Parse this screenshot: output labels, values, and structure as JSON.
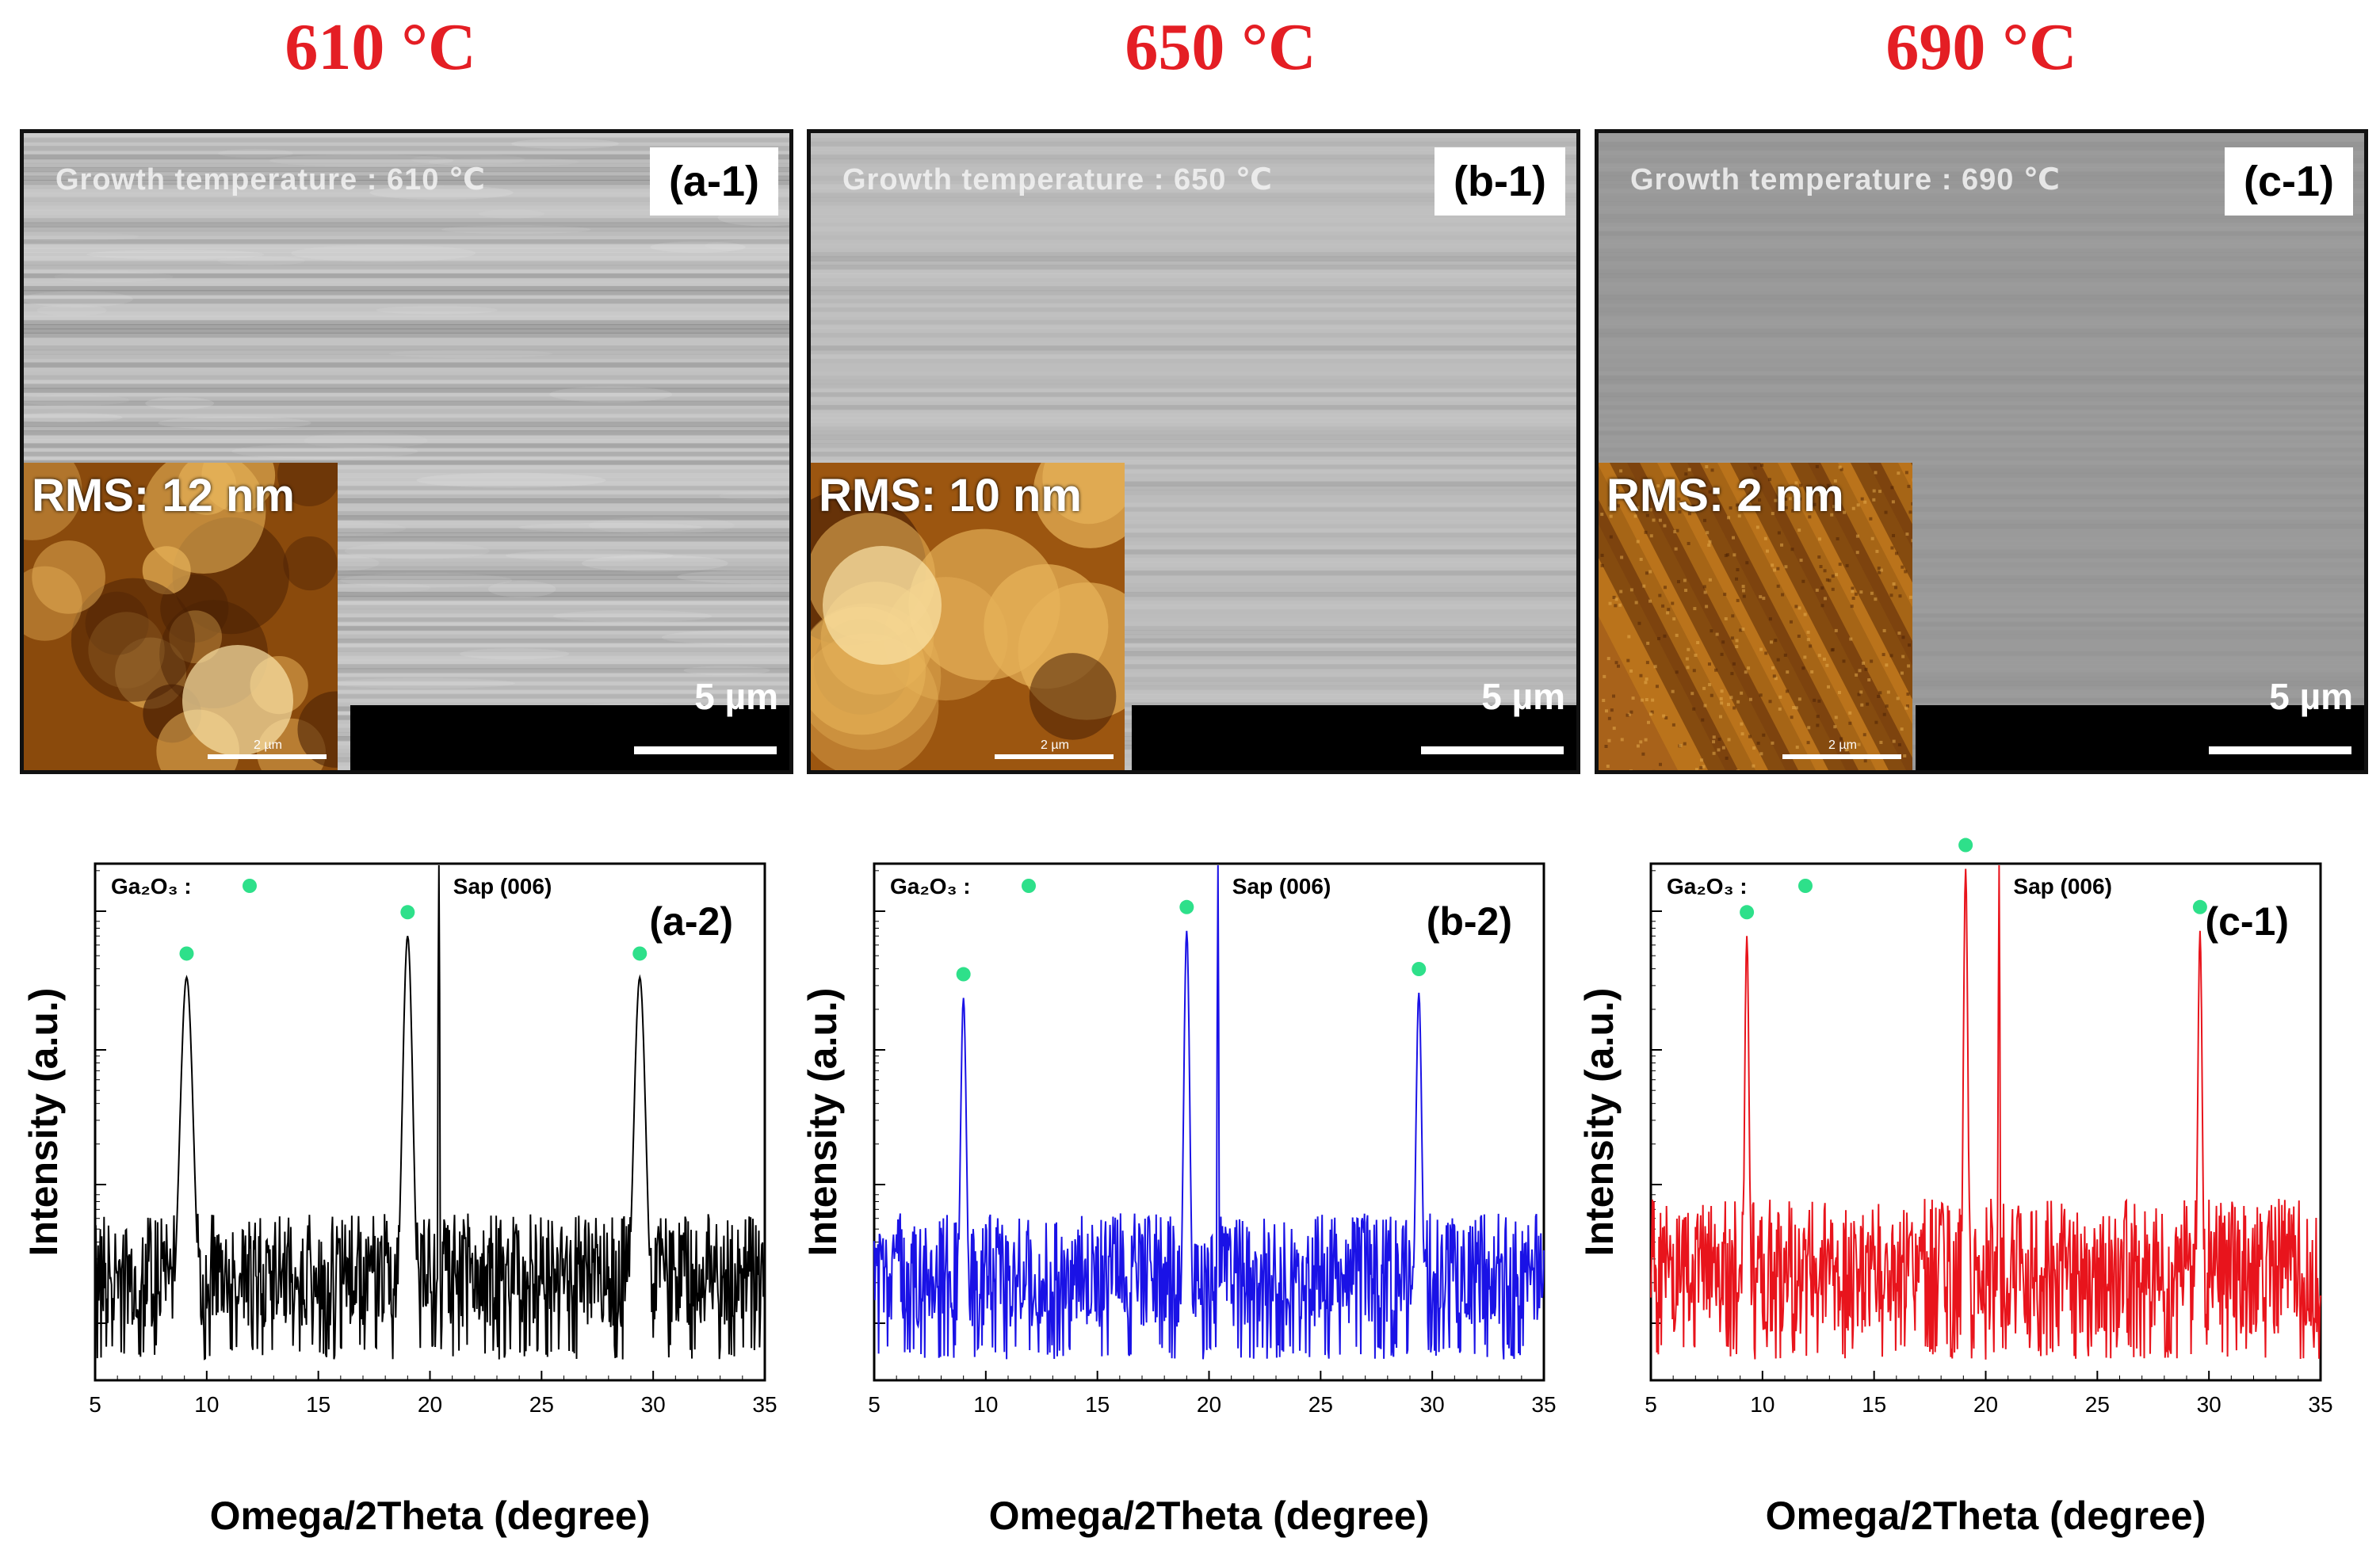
{
  "panels": [
    {
      "temperature": "610 °C",
      "sem": {
        "growth_text": "Growth temperature : 610 ℃",
        "label": "(a-1)",
        "rms": "RMS: 12 nm",
        "scale": "5 µm",
        "afm_scale": "2 µm",
        "texture_color": "#c3c3c3"
      },
      "xrd": {
        "label": "(a-2)",
        "legend": "Ga₂O₃ :",
        "sap_label": "Sap (006)",
        "ylabel": "Intensity (a.u.)",
        "xlabel": "Omega/2Theta (degree)",
        "line_color": "#000000"
      }
    },
    {
      "temperature": "650 °C",
      "sem": {
        "growth_text": "Growth temperature : 650 ℃",
        "label": "(b-1)",
        "rms": "RMS: 10 nm",
        "scale": "5 µm",
        "afm_scale": "2 µm",
        "texture_color": "#bdbdbd"
      },
      "xrd": {
        "label": "(b-2)",
        "legend": "Ga₂O₃ :",
        "sap_label": "Sap (006)",
        "ylabel": "Intensity (a.u.)",
        "xlabel": "Omega/2Theta (degree)",
        "line_color": "#1a12e6"
      }
    },
    {
      "temperature": "690 °C",
      "sem": {
        "growth_text": "Growth temperature : 690 ℃",
        "label": "(c-1)",
        "rms": "RMS: 2 nm",
        "scale": "5 µm",
        "afm_scale": "2 µm",
        "texture_color": "#9a9a9a"
      },
      "xrd": {
        "label": "(c-1)",
        "legend": "Ga₂O₃ :",
        "sap_label": "Sap (006)",
        "ylabel": "Intensity (a.u.)",
        "xlabel": "Omega/2Theta (degree)",
        "line_color": "#e8141c"
      }
    }
  ],
  "colors": {
    "temperature_text": "#e41e24",
    "ga2o3_marker": "#2ee08a",
    "afm_dark": "#5a2a05",
    "afm_light": "#f0d27a"
  },
  "chart_data": [
    {
      "type": "line",
      "title": "(a-2)",
      "xlabel": "Omega/2Theta (degree)",
      "ylabel": "Intensity (a.u.)",
      "xlim": [
        5,
        35
      ],
      "ylim": [
        0,
        100
      ],
      "xticks": [
        5,
        10,
        15,
        20,
        25,
        30,
        35
      ],
      "baseline": 18,
      "noise": 10,
      "peaks": [
        {
          "x": 9.1,
          "height": 78,
          "width": 0.45,
          "marker": true
        },
        {
          "x": 19.0,
          "height": 86,
          "width": 0.35,
          "marker": true
        },
        {
          "x": 20.4,
          "height": 117,
          "width": 0.05,
          "marker": false
        },
        {
          "x": 29.4,
          "height": 78,
          "width": 0.4,
          "marker": true
        }
      ],
      "annotations": [
        "Ga₂O₃ :",
        "Sap (006)"
      ]
    },
    {
      "type": "line",
      "title": "(b-2)",
      "xlabel": "Omega/2Theta (degree)",
      "ylabel": "Intensity (a.u.)",
      "xlim": [
        5,
        35
      ],
      "ylim": [
        0,
        100
      ],
      "xticks": [
        5,
        10,
        15,
        20,
        25,
        30,
        35
      ],
      "baseline": 18,
      "noise": 10,
      "peaks": [
        {
          "x": 9.0,
          "height": 74,
          "width": 0.2,
          "marker": true
        },
        {
          "x": 19.0,
          "height": 87,
          "width": 0.2,
          "marker": true
        },
        {
          "x": 20.4,
          "height": 108,
          "width": 0.05,
          "marker": false
        },
        {
          "x": 29.4,
          "height": 75,
          "width": 0.2,
          "marker": true
        }
      ],
      "annotations": [
        "Ga₂O₃ :",
        "Sap (006)"
      ]
    },
    {
      "type": "line",
      "title": "(c-1)",
      "xlabel": "Omega/2Theta (degree)",
      "ylabel": "Intensity (a.u.)",
      "xlim": [
        5,
        35
      ],
      "ylim": [
        0,
        100
      ],
      "xticks": [
        5,
        10,
        15,
        20,
        25,
        30,
        35
      ],
      "baseline": 18,
      "noise": 12,
      "peaks": [
        {
          "x": 9.3,
          "height": 86,
          "width": 0.15,
          "marker": true
        },
        {
          "x": 19.1,
          "height": 99,
          "width": 0.15,
          "marker": true
        },
        {
          "x": 20.6,
          "height": 115,
          "width": 0.05,
          "marker": false
        },
        {
          "x": 29.6,
          "height": 87,
          "width": 0.15,
          "marker": true
        }
      ],
      "annotations": [
        "Ga₂O₃ :",
        "Sap (006)"
      ]
    }
  ]
}
